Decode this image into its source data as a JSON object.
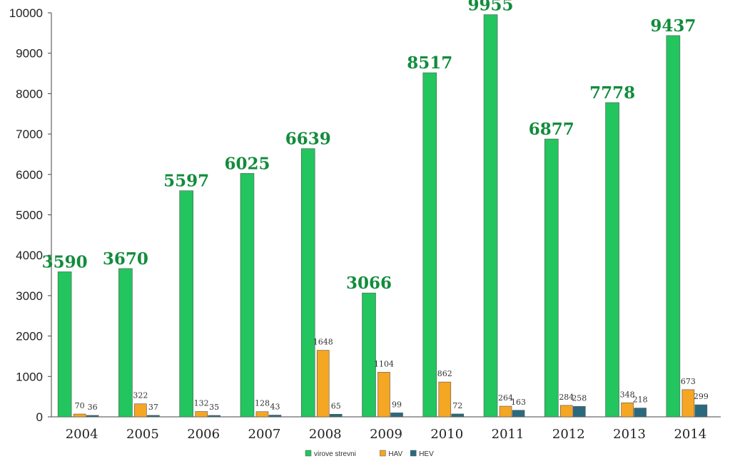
{
  "chart_data": {
    "type": "bar",
    "categories": [
      "2004",
      "2005",
      "2006",
      "2007",
      "2008",
      "2009",
      "2010",
      "2011",
      "2012",
      "2013",
      "2014"
    ],
    "series": [
      {
        "name": "virove strevni",
        "color": "#22c55e",
        "values": [
          3590,
          3670,
          5597,
          6025,
          6639,
          3066,
          8517,
          9955,
          6877,
          7778,
          9437
        ]
      },
      {
        "name": "HAV",
        "color": "#f5a623",
        "values": [
          70,
          322,
          132,
          128,
          1648,
          1104,
          862,
          264,
          284,
          348,
          673
        ]
      },
      {
        "name": "HEV",
        "color": "#2b6a7e",
        "values": [
          36,
          37,
          35,
          43,
          65,
          99,
          72,
          163,
          258,
          218,
          299
        ]
      }
    ],
    "ylim": [
      0,
      10000
    ],
    "yticks": [
      0,
      1000,
      2000,
      3000,
      4000,
      5000,
      6000,
      7000,
      8000,
      9000,
      10000
    ],
    "grid": false,
    "legend_position": "bottom-center"
  }
}
